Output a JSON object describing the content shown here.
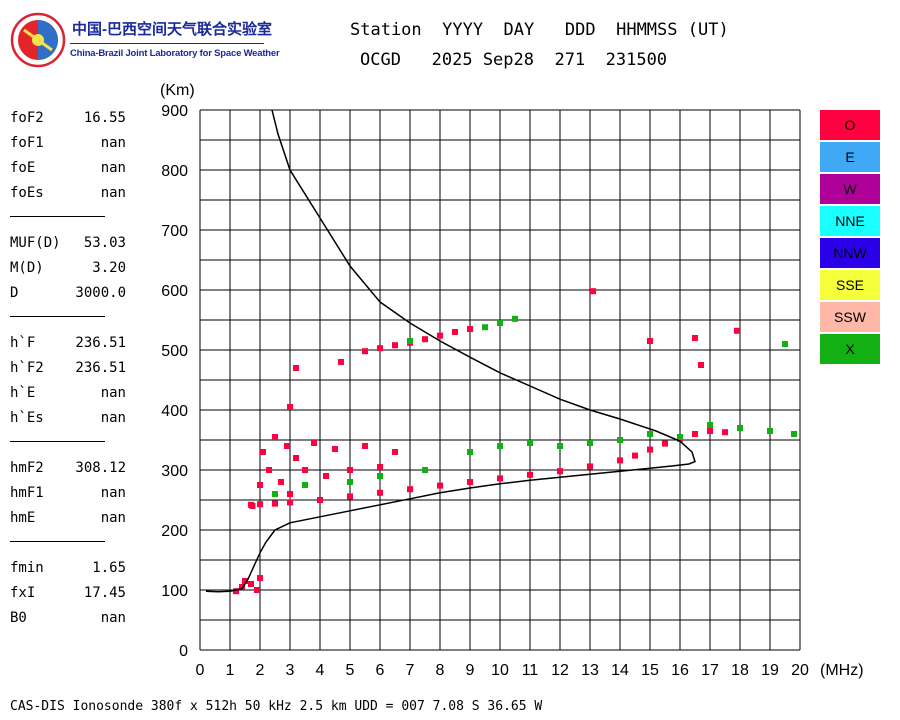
{
  "organization": {
    "name_cn": "中国-巴西空间天气联合实验室",
    "name_en": "China-Brazil Joint Laboratory for Space Weather"
  },
  "header": {
    "line1": "Station  YYYY  DAY   DDD  HHMMSS (UT)",
    "line2": "OCGD   2025 Sep28  271  231500"
  },
  "parameters": [
    {
      "name": "foF2",
      "value": "16.55"
    },
    {
      "name": "foF1",
      "value": "nan"
    },
    {
      "name": "foE",
      "value": "nan"
    },
    {
      "name": "foEs",
      "value": "nan"
    },
    {
      "sep": true
    },
    {
      "name": "MUF(D)",
      "value": "53.03"
    },
    {
      "name": "M(D)",
      "value": "3.20"
    },
    {
      "name": "D",
      "value": "3000.0"
    },
    {
      "sep": true
    },
    {
      "name": "h`F",
      "value": "236.51"
    },
    {
      "name": "h`F2",
      "value": "236.51"
    },
    {
      "name": "h`E",
      "value": "nan"
    },
    {
      "name": "h`Es",
      "value": "nan"
    },
    {
      "sep": true
    },
    {
      "name": "hmF2",
      "value": "308.12"
    },
    {
      "name": "hmF1",
      "value": "nan"
    },
    {
      "name": "hmE",
      "value": "nan"
    },
    {
      "sep": true
    },
    {
      "name": "fmin",
      "value": "1.65"
    },
    {
      "name": "fxI",
      "value": "17.45"
    },
    {
      "name": "B0",
      "value": "nan"
    }
  ],
  "footer": "CAS-DIS Ionosonde 380f x 512h 50 kHz 2.5 km UDD = 007 7.08 S 36.65 W",
  "chart_data": {
    "type": "scatter",
    "title": "",
    "xlabel": "(MHz)",
    "ylabel": "(Km)",
    "xlim": [
      0,
      20
    ],
    "ylim": [
      0,
      900
    ],
    "xticks": [
      0,
      1,
      2,
      3,
      4,
      5,
      6,
      7,
      8,
      9,
      10,
      11,
      12,
      13,
      14,
      15,
      16,
      17,
      18,
      19,
      20
    ],
    "yticks": [
      0,
      100,
      200,
      300,
      400,
      500,
      600,
      700,
      800,
      900
    ],
    "grid": true,
    "legend": {
      "position": "right",
      "entries": [
        {
          "label": "O",
          "color": "#ff0040"
        },
        {
          "label": "E",
          "color": "#3fa9f5"
        },
        {
          "label": "W",
          "color": "#b0009a"
        },
        {
          "label": "NNE",
          "color": "#19ffff"
        },
        {
          "label": "NNW",
          "color": "#2a00e8"
        },
        {
          "label": "SSE",
          "color": "#f5ff3b"
        },
        {
          "label": "SSW",
          "color": "#ffb7a8"
        },
        {
          "label": "X",
          "color": "#12b012"
        }
      ]
    },
    "series": [
      {
        "name": "O trace (lower F)",
        "color": "#ff0040",
        "points": [
          [
            1.7,
            242
          ],
          [
            2.0,
            243
          ],
          [
            2.5,
            244
          ],
          [
            3.0,
            246
          ],
          [
            4.0,
            250
          ],
          [
            5.0,
            256
          ],
          [
            6.0,
            262
          ],
          [
            7.0,
            268
          ],
          [
            8.0,
            274
          ],
          [
            9.0,
            280
          ],
          [
            10.0,
            286
          ],
          [
            11.0,
            292
          ],
          [
            12.0,
            298
          ],
          [
            13.0,
            306
          ],
          [
            14.0,
            316
          ],
          [
            14.5,
            324
          ],
          [
            15.0,
            334
          ],
          [
            15.5,
            344
          ],
          [
            16.0,
            352
          ],
          [
            16.5,
            360
          ],
          [
            17.0,
            365
          ],
          [
            17.5,
            363
          ]
        ]
      },
      {
        "name": "O spread (2-3 MHz)",
        "color": "#ff0040",
        "points": [
          [
            1.75,
            240
          ],
          [
            2.0,
            275
          ],
          [
            2.1,
            330
          ],
          [
            2.3,
            300
          ],
          [
            2.5,
            355
          ],
          [
            2.7,
            280
          ],
          [
            2.9,
            340
          ],
          [
            3.0,
            260
          ],
          [
            3.2,
            320
          ],
          [
            3.5,
            300
          ],
          [
            3.8,
            345
          ],
          [
            4.2,
            290
          ],
          [
            4.5,
            335
          ],
          [
            5.0,
            300
          ],
          [
            5.5,
            340
          ],
          [
            6.0,
            305
          ],
          [
            6.5,
            330
          ]
        ]
      },
      {
        "name": "X trace",
        "color": "#12b012",
        "points": [
          [
            2.5,
            260
          ],
          [
            3.5,
            275
          ],
          [
            5.0,
            280
          ],
          [
            6.0,
            290
          ],
          [
            7.5,
            300
          ],
          [
            9.0,
            330
          ],
          [
            10.0,
            340
          ],
          [
            11.0,
            345
          ],
          [
            12.0,
            340
          ],
          [
            13.0,
            345
          ],
          [
            14.0,
            350
          ],
          [
            15.0,
            360
          ],
          [
            16.0,
            355
          ],
          [
            17.0,
            375
          ],
          [
            18.0,
            370
          ],
          [
            19.0,
            365
          ],
          [
            19.8,
            360
          ]
        ]
      },
      {
        "name": "O multiple (~500 km)",
        "color": "#ff0040",
        "points": [
          [
            5.5,
            498
          ],
          [
            6.0,
            503
          ],
          [
            6.5,
            508
          ],
          [
            7.0,
            512
          ],
          [
            7.5,
            518
          ],
          [
            8.0,
            524
          ],
          [
            8.5,
            530
          ],
          [
            9.0,
            535
          ]
        ]
      },
      {
        "name": "X multiple (~550 km)",
        "color": "#12b012",
        "points": [
          [
            7.0,
            515
          ],
          [
            9.5,
            538
          ],
          [
            10.0,
            545
          ],
          [
            10.5,
            552
          ],
          [
            19.5,
            510
          ]
        ]
      },
      {
        "name": "E (low)",
        "color": "#ff0040",
        "points": [
          [
            1.2,
            98
          ],
          [
            1.4,
            105
          ],
          [
            1.5,
            115
          ],
          [
            1.7,
            110
          ],
          [
            1.9,
            100
          ],
          [
            2.0,
            120
          ]
        ]
      },
      {
        "name": "Isolated",
        "color": "#ff0040",
        "points": [
          [
            3.2,
            470
          ],
          [
            3.0,
            405
          ],
          [
            4.7,
            480
          ],
          [
            13.1,
            598
          ],
          [
            15.0,
            515
          ],
          [
            16.5,
            520
          ],
          [
            16.7,
            475
          ],
          [
            17.9,
            532
          ]
        ]
      }
    ],
    "profile_line": {
      "name": "Electron density profile",
      "color": "#000000",
      "points": [
        [
          0.2,
          98
        ],
        [
          0.6,
          97
        ],
        [
          1.0,
          98
        ],
        [
          1.4,
          102
        ],
        [
          1.6,
          118
        ],
        [
          1.8,
          140
        ],
        [
          2.0,
          162
        ],
        [
          2.2,
          180
        ],
        [
          2.5,
          200
        ],
        [
          3.0,
          212
        ],
        [
          4.0,
          222
        ],
        [
          5.0,
          232
        ],
        [
          6.0,
          242
        ],
        [
          7.0,
          252
        ],
        [
          8.0,
          262
        ],
        [
          9.0,
          270
        ],
        [
          10.0,
          277
        ],
        [
          11.0,
          283
        ],
        [
          12.0,
          288
        ],
        [
          13.0,
          293
        ],
        [
          14.0,
          298
        ],
        [
          15.0,
          303
        ],
        [
          15.8,
          307
        ],
        [
          16.3,
          310
        ],
        [
          16.5,
          314
        ],
        [
          16.4,
          330
        ],
        [
          16.0,
          348
        ],
        [
          15.2,
          365
        ],
        [
          14.0,
          385
        ],
        [
          13.0,
          400
        ],
        [
          12.0,
          418
        ],
        [
          11.0,
          440
        ],
        [
          10.0,
          462
        ],
        [
          9.0,
          488
        ],
        [
          8.0,
          515
        ],
        [
          7.0,
          545
        ],
        [
          6.0,
          580
        ],
        [
          5.0,
          640
        ],
        [
          4.0,
          720
        ],
        [
          3.0,
          800
        ],
        [
          2.6,
          860
        ],
        [
          2.4,
          900
        ]
      ]
    }
  }
}
